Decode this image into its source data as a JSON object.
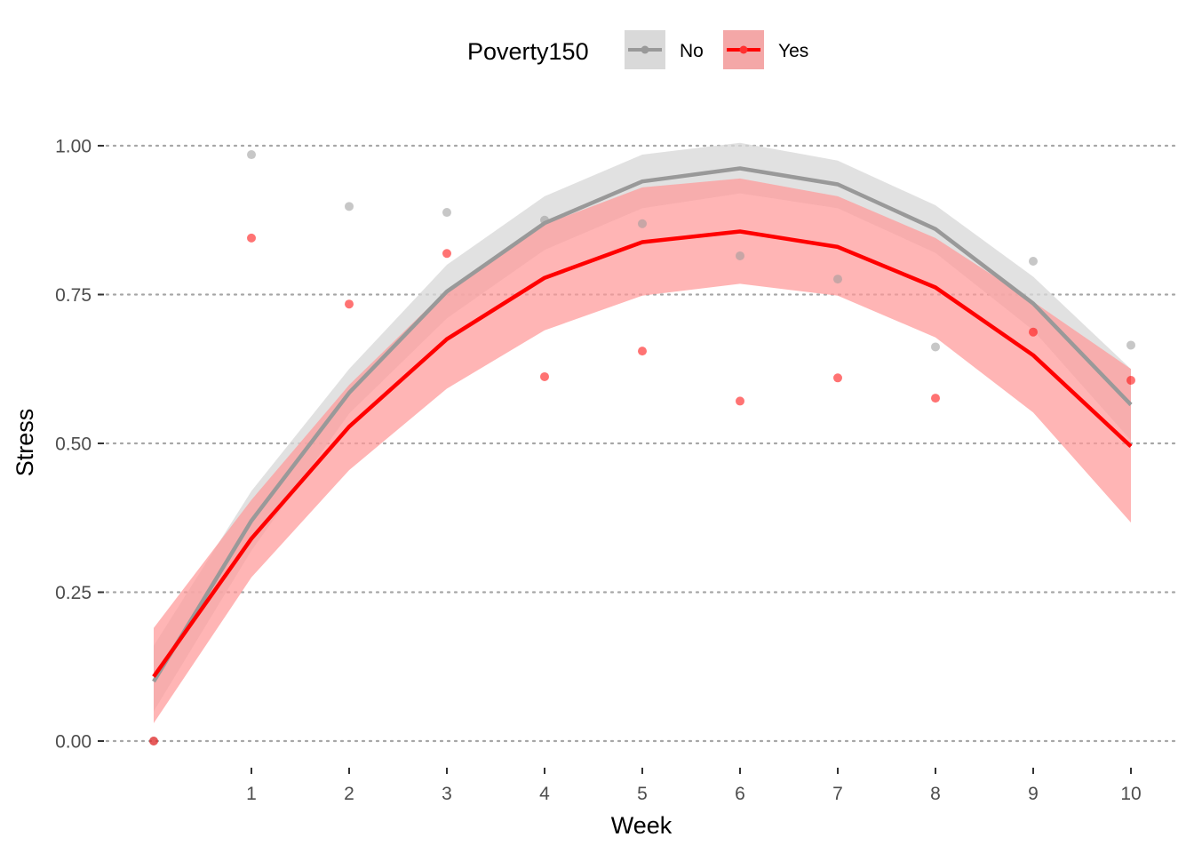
{
  "chart_data": {
    "type": "line",
    "xlabel": "Week",
    "ylabel": "Stress",
    "xlim": [
      0,
      10
    ],
    "ylim": [
      0,
      1
    ],
    "x_ticks": [
      "1",
      "2",
      "3",
      "4",
      "5",
      "6",
      "7",
      "8",
      "9",
      "10"
    ],
    "y_ticks": [
      "0.00",
      "0.25",
      "0.50",
      "0.75",
      "1.00"
    ],
    "grid": "horizontal dotted",
    "legend": {
      "title": "Poverty150",
      "position": "top"
    },
    "x": [
      0,
      1,
      2,
      3,
      4,
      5,
      6,
      7,
      8,
      9,
      10
    ],
    "series": [
      {
        "name": "No",
        "color": "#999999",
        "band_color": "#d9d9d9",
        "fit": [
          0.1,
          0.37,
          0.585,
          0.755,
          0.87,
          0.94,
          0.962,
          0.935,
          0.86,
          0.735,
          0.565
        ],
        "lower": [
          0.05,
          0.32,
          0.55,
          0.71,
          0.825,
          0.895,
          0.92,
          0.895,
          0.82,
          0.69,
          0.505
        ],
        "upper": [
          0.16,
          0.42,
          0.625,
          0.8,
          0.915,
          0.985,
          1.005,
          0.975,
          0.9,
          0.78,
          0.625
        ],
        "observed": [
          0.0,
          0.985,
          0.898,
          0.888,
          0.875,
          0.869,
          0.815,
          0.776,
          0.662,
          0.806,
          0.665
        ]
      },
      {
        "name": "Yes",
        "color": "#ff0000",
        "band_color": "#ff9999",
        "fit": [
          0.108,
          0.34,
          0.528,
          0.675,
          0.778,
          0.838,
          0.856,
          0.83,
          0.762,
          0.648,
          0.495
        ],
        "lower": [
          0.03,
          0.275,
          0.455,
          0.592,
          0.69,
          0.748,
          0.768,
          0.748,
          0.678,
          0.552,
          0.367
        ],
        "upper": [
          0.19,
          0.405,
          0.598,
          0.758,
          0.868,
          0.93,
          0.945,
          0.915,
          0.845,
          0.738,
          0.625
        ],
        "observed": [
          0.0,
          0.845,
          0.734,
          0.819,
          0.612,
          0.655,
          0.571,
          0.61,
          0.576,
          0.687,
          0.606
        ]
      }
    ]
  }
}
